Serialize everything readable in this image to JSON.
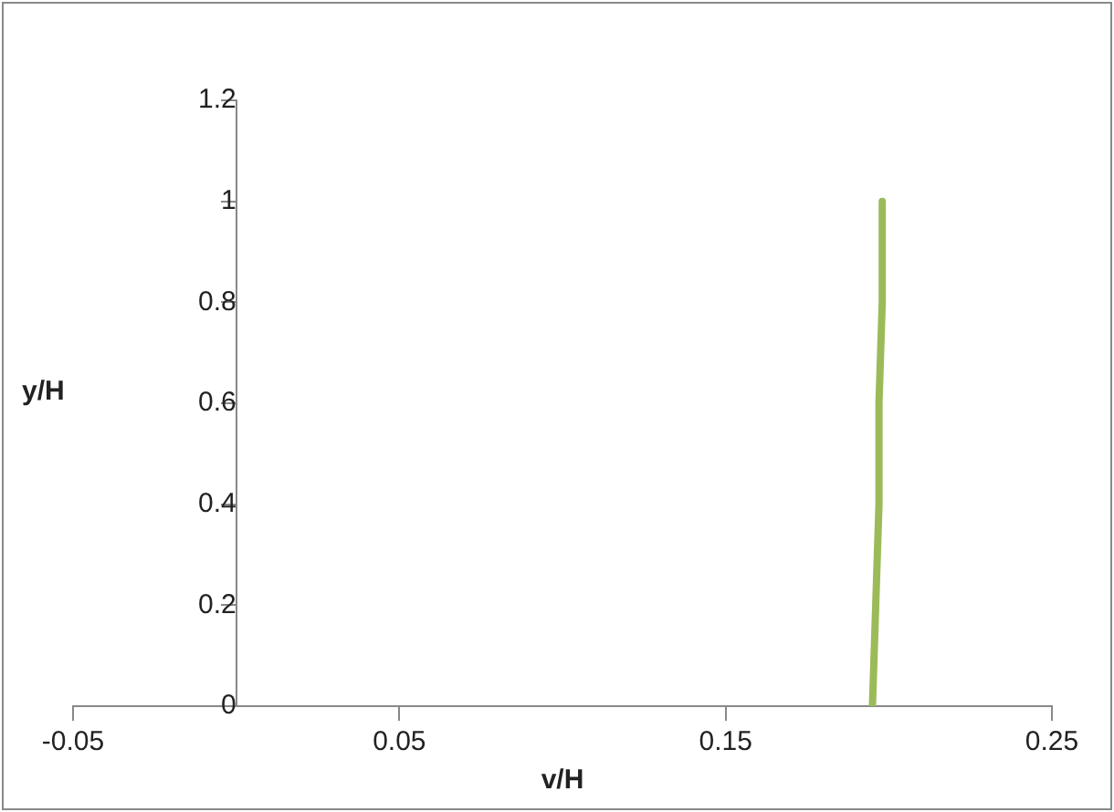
{
  "chart_data": {
    "type": "line",
    "xlabel": "v/H",
    "ylabel": "y/H",
    "x": [
      0.195,
      0.196,
      0.197,
      0.197,
      0.198,
      0.198
    ],
    "series": [
      {
        "color": "#9bbb59",
        "values": [
          0,
          0.2,
          0.4,
          0.6,
          0.8,
          1
        ]
      }
    ],
    "xlim": [
      -0.05,
      0.25
    ],
    "xticks": [
      -0.05,
      0.05,
      0.15,
      0.25
    ],
    "ylim": [
      0,
      1.2
    ],
    "yticks": [
      0,
      0.2,
      0.4,
      0.6,
      0.8,
      1,
      1.2
    ],
    "grid": false,
    "legend": false,
    "marker": "none",
    "line_style": "solid"
  }
}
